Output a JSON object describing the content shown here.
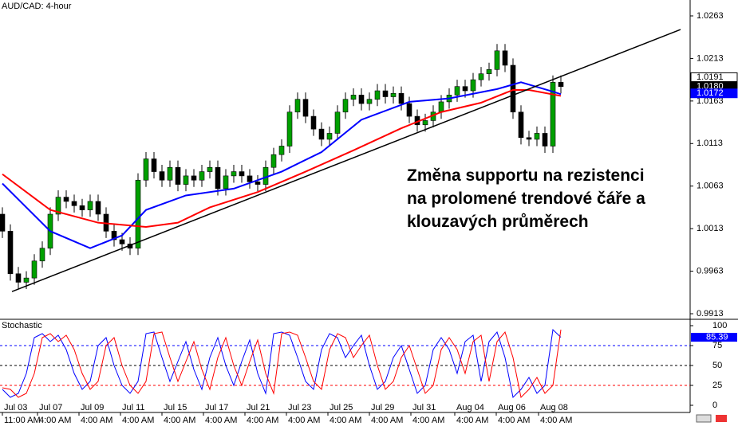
{
  "chart_data": {
    "type": "candlestick",
    "title": "AUD/CAD: 4-hour",
    "annotation": [
      "Změna supportu na rezistenci",
      "na prolomené trendové čáře a",
      "klouzavých průměrech"
    ],
    "up_color": "#00a000",
    "down_color": "#000000",
    "xlim": [
      -0.3,
      86.2
    ],
    "ylim": [
      0.99074,
      1.02817
    ],
    "yticks": [
      {
        "value": 1.0263,
        "label": "1.0263"
      },
      {
        "value": 1.0213,
        "label": "1.0213"
      },
      {
        "value": 1.0163,
        "label": "1.0163"
      },
      {
        "value": 1.0113,
        "label": "1.0113"
      },
      {
        "value": 1.0063,
        "label": "1.0063"
      },
      {
        "value": 1.0013,
        "label": "1.0013"
      },
      {
        "value": 0.9963,
        "label": "0.9963"
      },
      {
        "value": 0.9913,
        "label": "0.9913"
      }
    ],
    "xticks": [
      {
        "value": 0,
        "label": "Jul 03"
      },
      {
        "value": 4.4,
        "label": "Jul 07"
      },
      {
        "value": 9.6,
        "label": "Jul 09"
      },
      {
        "value": 14.8,
        "label": "Jul 11"
      },
      {
        "value": 20,
        "label": "Jul 15"
      },
      {
        "value": 25.2,
        "label": "Jul 17"
      },
      {
        "value": 30.4,
        "label": "Jul 21"
      },
      {
        "value": 35.6,
        "label": "Jul 23"
      },
      {
        "value": 40.8,
        "label": "Jul 25"
      },
      {
        "value": 46,
        "label": "Jul 29"
      },
      {
        "value": 51.2,
        "label": "Jul 31"
      },
      {
        "value": 56.7,
        "label": "Aug 04"
      },
      {
        "value": 61.9,
        "label": "Aug 06"
      },
      {
        "value": 67.2,
        "label": "Aug 08"
      }
    ],
    "xtick_times": [
      "11:00 AM",
      "4:00 AM",
      "4:00 AM",
      "4:00 AM",
      "4:00 AM",
      "4:00 AM",
      "4:00 AM",
      "4:00 AM",
      "4:00 AM",
      "4:00 AM",
      "4:00 AM",
      "4:00 AM",
      "4:00 AM",
      "4:00 AM"
    ],
    "open": [
      1.003,
      1.001,
      0.996,
      0.995,
      0.9955,
      0.9975,
      0.999,
      1.003,
      1.005,
      1.0045,
      1.004,
      1.0035,
      1.0045,
      1.003,
      1.001,
      1.0,
      0.9995,
      0.999,
      1.007,
      1.0095,
      1.008,
      1.007,
      1.0085,
      1.0065,
      1.0075,
      1.007,
      1.008,
      1.0085,
      1.006,
      1.0075,
      1.008,
      1.0075,
      1.0068,
      1.0065,
      1.0085,
      1.01,
      1.011,
      1.015,
      1.0165,
      1.0145,
      1.013,
      1.0118,
      1.0125,
      1.015,
      1.0165,
      1.017,
      1.016,
      1.0165,
      1.0175,
      1.0168,
      1.0172,
      1.016,
      1.0145,
      1.0135,
      1.014,
      1.015,
      1.0162,
      1.017,
      1.018,
      1.0175,
      1.0188,
      1.0195,
      1.02,
      1.0222,
      1.0205,
      1.015,
      1.012,
      1.0118,
      1.0125,
      1.011,
      1.0185
    ],
    "close": [
      1.001,
      0.996,
      0.995,
      0.9955,
      0.9975,
      0.999,
      1.003,
      1.005,
      1.0045,
      1.004,
      1.0035,
      1.0045,
      1.003,
      1.001,
      1.0,
      0.9995,
      0.999,
      1.007,
      1.0095,
      1.008,
      1.007,
      1.0085,
      1.0065,
      1.0075,
      1.007,
      1.008,
      1.0085,
      1.006,
      1.0075,
      1.008,
      1.0075,
      1.0068,
      1.0065,
      1.0085,
      1.01,
      1.011,
      1.015,
      1.0165,
      1.0145,
      1.013,
      1.0118,
      1.0125,
      1.015,
      1.0165,
      1.017,
      1.016,
      1.0165,
      1.0175,
      1.0168,
      1.0172,
      1.016,
      1.0145,
      1.0135,
      1.014,
      1.015,
      1.0162,
      1.017,
      1.018,
      1.0175,
      1.0188,
      1.0195,
      1.02,
      1.0222,
      1.0205,
      1.015,
      1.012,
      1.0118,
      1.0125,
      1.011,
      1.0185,
      1.018
    ],
    "high": [
      1.0038,
      1.0018,
      0.9968,
      0.9963,
      0.9983,
      0.9998,
      1.0038,
      1.0058,
      1.0058,
      1.0053,
      1.0048,
      1.0053,
      1.0053,
      1.0038,
      1.0018,
      1.0008,
      1.0003,
      1.0078,
      1.0103,
      1.0103,
      1.0088,
      1.0093,
      1.0093,
      1.0083,
      1.0083,
      1.0088,
      1.0093,
      1.0093,
      1.0083,
      1.0088,
      1.0088,
      1.0083,
      1.0076,
      1.0093,
      1.0108,
      1.0118,
      1.0158,
      1.0173,
      1.0173,
      1.0153,
      1.0138,
      1.0133,
      1.0158,
      1.0173,
      1.0178,
      1.0178,
      1.0173,
      1.0183,
      1.0183,
      1.018,
      1.018,
      1.0168,
      1.0153,
      1.0148,
      1.0158,
      1.017,
      1.0178,
      1.0188,
      1.0188,
      1.0196,
      1.0203,
      1.0208,
      1.023,
      1.023,
      1.0213,
      1.0158,
      1.0128,
      1.0133,
      1.0133,
      1.0193,
      1.0193
    ],
    "low": [
      1.0002,
      0.9952,
      0.9942,
      0.9942,
      0.9947,
      0.9967,
      0.9982,
      1.0022,
      1.0037,
      1.0032,
      1.0027,
      1.0027,
      1.0022,
      1.0002,
      0.9992,
      0.9987,
      0.9982,
      0.9982,
      1.0062,
      1.0072,
      1.0062,
      1.0062,
      1.0057,
      1.0057,
      1.0062,
      1.0062,
      1.0072,
      1.0052,
      1.0052,
      1.0067,
      1.0067,
      1.006,
      1.0057,
      1.0057,
      1.0077,
      1.0092,
      1.0102,
      1.0142,
      1.0137,
      1.0122,
      1.011,
      1.011,
      1.0117,
      1.0142,
      1.0157,
      1.0152,
      1.0152,
      1.0157,
      1.016,
      1.016,
      1.0152,
      1.0137,
      1.0127,
      1.0127,
      1.0132,
      1.0142,
      1.0154,
      1.0162,
      1.0167,
      1.0167,
      1.018,
      1.0187,
      1.0192,
      1.0197,
      1.0142,
      1.0112,
      1.011,
      1.011,
      1.0102,
      1.0102,
      1.0172
    ],
    "moving_averages": [
      {
        "color": "#0000ff",
        "x": [
          0,
          6,
          11,
          15,
          18,
          23,
          29,
          35,
          40,
          45,
          51,
          56,
          62,
          65,
          69,
          70
        ],
        "values": [
          1.0066,
          1.001,
          0.999,
          1.0005,
          1.0035,
          1.0052,
          1.006,
          1.008,
          1.0103,
          1.0141,
          1.0162,
          1.0166,
          1.0177,
          1.0185,
          1.0174,
          1.0171
        ]
      },
      {
        "color": "#ff0000",
        "x": [
          0,
          6,
          12,
          18,
          22,
          26,
          32,
          38,
          44,
          50,
          55,
          60,
          64,
          66,
          70
        ],
        "values": [
          1.0077,
          1.0035,
          1.002,
          1.0015,
          1.002,
          1.0038,
          1.0056,
          1.008,
          1.0105,
          1.0131,
          1.015,
          1.0161,
          1.0176,
          1.0176,
          1.0169
        ]
      }
    ],
    "trendline": {
      "color": "#000000",
      "x": [
        1.2,
        85
      ],
      "values": [
        0.9939,
        1.0247
      ]
    },
    "price_markers": [
      {
        "value": 1.0191,
        "label": "1.0191",
        "color": "#ffffff",
        "text_color": "#000000"
      },
      {
        "value": 1.018,
        "label": "1.0180",
        "color": "#000000",
        "text_color": "#ffffff"
      },
      {
        "value": 1.0172,
        "label": "1.0172",
        "color": "#0000ff",
        "text_color": "#ffffff"
      }
    ],
    "stochastic": {
      "title": "Stochastic",
      "ylim": [
        -9,
        107
      ],
      "yticks": [
        100,
        75,
        50,
        25,
        0
      ],
      "levels": [
        {
          "value": 75,
          "color": "#0000ff"
        },
        {
          "value": 50,
          "color": "#000000"
        },
        {
          "value": 25,
          "color": "#ff0000"
        }
      ],
      "marker": {
        "value": 85.39,
        "color": "#0000ff"
      },
      "series": [
        {
          "color": "#0000ff",
          "values": [
            20,
            10,
            15,
            40,
            85,
            90,
            80,
            88,
            70,
            40,
            20,
            30,
            75,
            85,
            50,
            25,
            15,
            30,
            90,
            92,
            60,
            30,
            55,
            80,
            45,
            20,
            60,
            85,
            50,
            25,
            55,
            82,
            40,
            15,
            90,
            92,
            88,
            60,
            30,
            20,
            70,
            90,
            85,
            60,
            75,
            88,
            50,
            20,
            30,
            60,
            75,
            45,
            15,
            25,
            70,
            85,
            70,
            40,
            80,
            88,
            30,
            80,
            92,
            60,
            10,
            20,
            35,
            15,
            25,
            95,
            85.39
          ]
        },
        {
          "color": "#ff0000",
          "values": [
            22,
            20,
            10,
            15,
            40,
            85,
            90,
            80,
            88,
            70,
            40,
            20,
            30,
            75,
            85,
            50,
            25,
            15,
            30,
            90,
            92,
            60,
            30,
            55,
            80,
            45,
            20,
            60,
            85,
            50,
            25,
            55,
            82,
            40,
            15,
            90,
            92,
            88,
            60,
            30,
            20,
            70,
            90,
            85,
            60,
            75,
            88,
            50,
            20,
            30,
            60,
            75,
            45,
            15,
            25,
            70,
            85,
            70,
            40,
            80,
            88,
            30,
            80,
            92,
            60,
            10,
            20,
            35,
            15,
            25,
            95
          ]
        }
      ]
    }
  }
}
